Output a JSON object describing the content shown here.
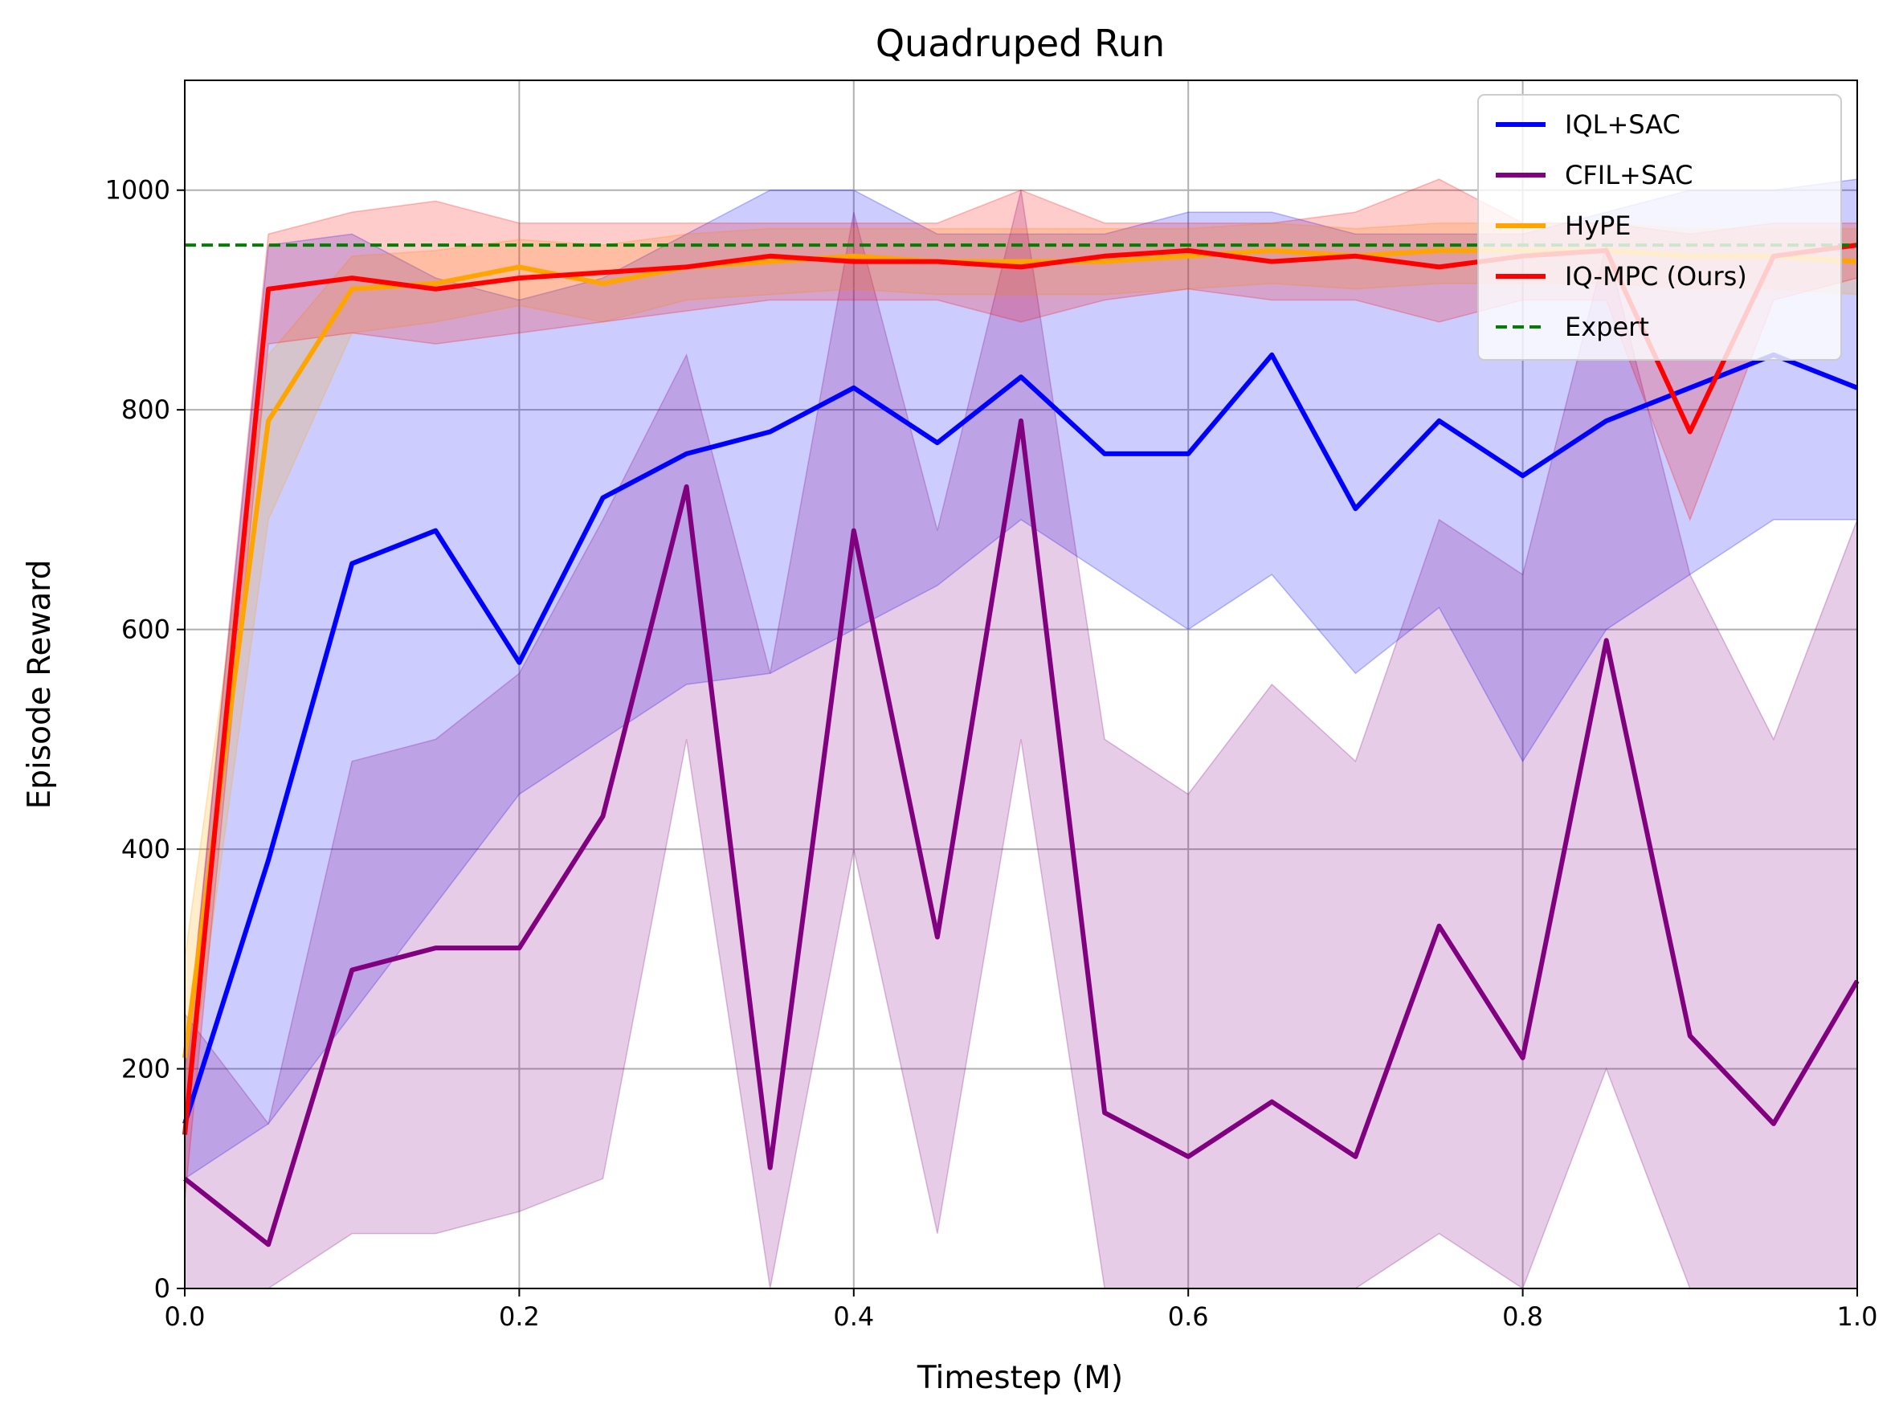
{
  "chart_data": {
    "type": "line",
    "title": "Quadruped Run",
    "xlabel": "Timestep (M)",
    "ylabel": "Episode Reward",
    "xlim": [
      0,
      1.0
    ],
    "ylim": [
      0,
      1100
    ],
    "xticks": [
      0.0,
      0.2,
      0.4,
      0.6,
      0.8,
      1.0
    ],
    "xtick_labels": [
      "0.0",
      "0.2",
      "0.4",
      "0.6",
      "0.8",
      "1.0"
    ],
    "yticks": [
      0,
      200,
      400,
      600,
      800,
      1000
    ],
    "ytick_labels": [
      "0",
      "200",
      "400",
      "600",
      "800",
      "1000"
    ],
    "grid": true,
    "legend_position": "top-right",
    "x": [
      0.0,
      0.05,
      0.1,
      0.15,
      0.2,
      0.25,
      0.3,
      0.35,
      0.4,
      0.45,
      0.5,
      0.55,
      0.6,
      0.65,
      0.7,
      0.75,
      0.8,
      0.85,
      0.9,
      0.95,
      1.0
    ],
    "series": [
      {
        "name": "IQL+SAC",
        "color": "#0000ff",
        "values": [
          150,
          390,
          660,
          690,
          570,
          720,
          760,
          780,
          820,
          770,
          830,
          760,
          760,
          850,
          710,
          790,
          740,
          790,
          820,
          850,
          820
        ],
        "lower": [
          100,
          150,
          250,
          350,
          450,
          500,
          550,
          560,
          600,
          640,
          700,
          650,
          600,
          650,
          560,
          620,
          480,
          600,
          650,
          700,
          700
        ],
        "upper": [
          200,
          950,
          960,
          920,
          900,
          920,
          960,
          1000,
          1000,
          960,
          960,
          960,
          980,
          980,
          960,
          960,
          960,
          980,
          1000,
          1000,
          1010
        ]
      },
      {
        "name": "CFIL+SAC",
        "color": "#800080",
        "values": [
          100,
          40,
          290,
          310,
          310,
          430,
          730,
          110,
          690,
          320,
          790,
          160,
          120,
          170,
          120,
          330,
          210,
          590,
          230,
          150,
          280
        ],
        "lower": [
          0,
          0,
          50,
          50,
          70,
          100,
          500,
          0,
          400,
          50,
          500,
          0,
          0,
          0,
          0,
          50,
          0,
          200,
          0,
          0,
          0
        ],
        "upper": [
          250,
          150,
          480,
          500,
          560,
          700,
          850,
          560,
          980,
          690,
          1000,
          500,
          450,
          550,
          480,
          700,
          650,
          950,
          650,
          500,
          700
        ]
      },
      {
        "name": "HyPE",
        "color": "#ffa500",
        "values": [
          210,
          790,
          910,
          915,
          930,
          915,
          930,
          935,
          940,
          935,
          935,
          935,
          940,
          945,
          940,
          945,
          945,
          945,
          940,
          940,
          935
        ],
        "lower": [
          150,
          700,
          870,
          880,
          895,
          880,
          900,
          905,
          910,
          905,
          905,
          905,
          910,
          915,
          910,
          915,
          915,
          915,
          910,
          910,
          905
        ],
        "upper": [
          300,
          850,
          940,
          945,
          955,
          950,
          960,
          965,
          965,
          965,
          965,
          965,
          965,
          970,
          965,
          970,
          970,
          970,
          965,
          965,
          965
        ]
      },
      {
        "name": "IQ-MPC (Ours)",
        "color": "#ff0000",
        "values": [
          140,
          910,
          920,
          910,
          920,
          925,
          930,
          940,
          935,
          935,
          930,
          940,
          945,
          935,
          940,
          930,
          940,
          945,
          780,
          940,
          950
        ],
        "lower": [
          80,
          860,
          870,
          860,
          870,
          880,
          890,
          900,
          900,
          900,
          880,
          900,
          910,
          900,
          900,
          880,
          900,
          900,
          700,
          900,
          920
        ],
        "upper": [
          200,
          960,
          980,
          990,
          970,
          970,
          970,
          970,
          970,
          970,
          1000,
          970,
          970,
          970,
          980,
          1010,
          970,
          970,
          960,
          970,
          970
        ]
      },
      {
        "name": "Expert",
        "color": "#008000",
        "style": "dashed",
        "constant": 950
      }
    ]
  }
}
